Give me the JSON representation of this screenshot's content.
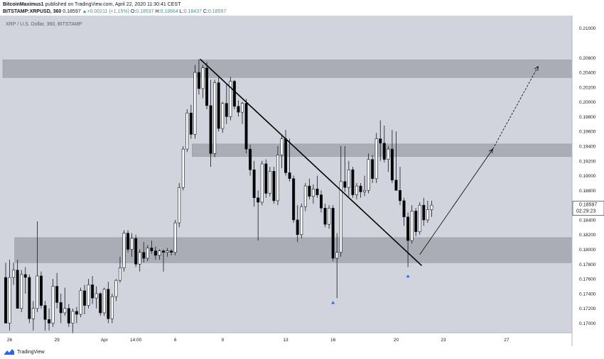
{
  "header": {
    "author": "BitcoinMaximus1",
    "published_text": "published on TradingView.com, April 22, 2020 11:30:41 CEST",
    "symbol": "BITSTAMP:XRPUSD, 360",
    "last": "0.18597",
    "change": "+0.00211 (+1.15%)",
    "open_label": "O:",
    "open": "0.18537",
    "high_label": "H:",
    "high": "0.18664",
    "low_label": "L:",
    "low": "0.18437",
    "close_label": "C:",
    "close": "0.18597"
  },
  "chart_data": {
    "type": "candlestick",
    "legend": "XRP / U.S. Dollar, 360, BITSTAMP",
    "ylim": [
      0.1687,
      0.2117
    ],
    "y_ticks": [
      "0.21000",
      "0.20600",
      "0.20400",
      "0.20200",
      "0.20000",
      "0.19800",
      "0.19600",
      "0.19400",
      "0.19200",
      "0.19000",
      "0.18800",
      "0.18600",
      "0.18400",
      "0.18200",
      "0.18000",
      "0.17800",
      "0.17600",
      "0.17400",
      "0.17200",
      "0.17000"
    ],
    "x_ticks": [
      {
        "label": "26",
        "bar": 1
      },
      {
        "label": "29",
        "bar": 13
      },
      {
        "label": "Apr",
        "bar": 25
      },
      {
        "label": "14:00",
        "bar": 33
      },
      {
        "label": "6",
        "bar": 43
      },
      {
        "label": "9",
        "bar": 55
      },
      {
        "label": "13",
        "bar": 71
      },
      {
        "label": "16",
        "bar": 83
      },
      {
        "label": "20",
        "bar": 99
      },
      {
        "label": "23",
        "bar": 111
      },
      {
        "label": "27",
        "bar": 127
      }
    ],
    "bar_count": 145,
    "last_price_label": "0.18597",
    "countdown_label": "02:29:23",
    "colors": {
      "bull": "#ffffff",
      "bear": "#000000",
      "wick": "#131722",
      "background": "#d1d4dc",
      "zone": "#a3a6ae",
      "arrow_marker": "#2962ff"
    },
    "zones": [
      {
        "low": 0.2033,
        "high": 0.2057,
        "from_bar": 0,
        "to_bar": 145
      },
      {
        "low": 0.1926,
        "high": 0.1943,
        "from_bar": 48,
        "to_bar": 145
      },
      {
        "low": 0.1782,
        "high": 0.1816,
        "from_bar": 3,
        "to_bar": 145
      }
    ],
    "trendline": {
      "from": [
        49.3,
        0.2058
      ],
      "to": [
        105.5,
        0.1778
      ]
    },
    "projection": {
      "solid": {
        "from": [
          105,
          0.1793
        ],
        "to": [
          123.5,
          0.1936
        ]
      },
      "dashed": {
        "from": [
          123.5,
          0.1936
        ],
        "to": [
          135,
          0.2048
        ]
      }
    },
    "markers": [
      {
        "bar": 83,
        "price": 0.1728
      },
      {
        "bar": 102,
        "price": 0.1764
      }
    ],
    "candles": [
      [
        0.1762,
        0.1782,
        0.17,
        0.17
      ],
      [
        0.17,
        0.1786,
        0.169,
        0.1762
      ],
      [
        0.1762,
        0.1782,
        0.1752,
        0.1772
      ],
      [
        0.1772,
        0.1786,
        0.172,
        0.172
      ],
      [
        0.172,
        0.1772,
        0.1715,
        0.1766
      ],
      [
        0.1766,
        0.1776,
        0.174,
        0.1762
      ],
      [
        0.1762,
        0.1766,
        0.17,
        0.1706
      ],
      [
        0.1706,
        0.173,
        0.169,
        0.172
      ],
      [
        0.172,
        0.1838,
        0.1715,
        0.1764
      ],
      [
        0.1764,
        0.177,
        0.172,
        0.1724
      ],
      [
        0.1724,
        0.173,
        0.169,
        0.1705
      ],
      [
        0.1705,
        0.172,
        0.169,
        0.17
      ],
      [
        0.17,
        0.176,
        0.1695,
        0.175
      ],
      [
        0.175,
        0.1768,
        0.172,
        0.1728
      ],
      [
        0.1728,
        0.174,
        0.17,
        0.1714
      ],
      [
        0.1714,
        0.1748,
        0.171,
        0.172
      ],
      [
        0.172,
        0.1726,
        0.1695,
        0.17
      ],
      [
        0.17,
        0.172,
        0.1686,
        0.1716
      ],
      [
        0.1716,
        0.1722,
        0.17,
        0.1712
      ],
      [
        0.1712,
        0.1748,
        0.1708,
        0.1744
      ],
      [
        0.1744,
        0.1752,
        0.1712,
        0.1724
      ],
      [
        0.1724,
        0.176,
        0.172,
        0.1752
      ],
      [
        0.1752,
        0.1764,
        0.1726,
        0.1734
      ],
      [
        0.1734,
        0.175,
        0.172,
        0.174
      ],
      [
        0.174,
        0.1742,
        0.171,
        0.1714
      ],
      [
        0.1714,
        0.1748,
        0.171,
        0.1746
      ],
      [
        0.1746,
        0.1756,
        0.17,
        0.1706
      ],
      [
        0.1706,
        0.174,
        0.17,
        0.1736
      ],
      [
        0.1736,
        0.176,
        0.173,
        0.1758
      ],
      [
        0.1758,
        0.179,
        0.1755,
        0.1775
      ],
      [
        0.1775,
        0.1826,
        0.177,
        0.1822
      ],
      [
        0.1822,
        0.1826,
        0.1796,
        0.18
      ],
      [
        0.18,
        0.1822,
        0.179,
        0.1815
      ],
      [
        0.1815,
        0.182,
        0.1776,
        0.178
      ],
      [
        0.178,
        0.18,
        0.177,
        0.1796
      ],
      [
        0.1796,
        0.181,
        0.1782,
        0.1788
      ],
      [
        0.1788,
        0.1806,
        0.1784,
        0.1802
      ],
      [
        0.1802,
        0.1812,
        0.1794,
        0.1798
      ],
      [
        0.1798,
        0.1804,
        0.1786,
        0.1792
      ],
      [
        0.1792,
        0.18,
        0.1786,
        0.1798
      ],
      [
        0.1798,
        0.18,
        0.177,
        0.1796
      ],
      [
        0.1796,
        0.1802,
        0.179,
        0.1798
      ],
      [
        0.1798,
        0.18,
        0.1792,
        0.1796
      ],
      [
        0.1796,
        0.184,
        0.1792,
        0.1836
      ],
      [
        0.1836,
        0.189,
        0.183,
        0.1884
      ],
      [
        0.1884,
        0.194,
        0.188,
        0.1936
      ],
      [
        0.1936,
        0.199,
        0.1932,
        0.1985
      ],
      [
        0.1985,
        0.1996,
        0.195,
        0.1956
      ],
      [
        0.1956,
        0.205,
        0.195,
        0.204
      ],
      [
        0.204,
        0.2058,
        0.201,
        0.2018
      ],
      [
        0.2018,
        0.205,
        0.2005,
        0.2046
      ],
      [
        0.2046,
        0.2054,
        0.199,
        0.1995
      ],
      [
        0.1995,
        0.203,
        0.1912,
        0.193
      ],
      [
        0.193,
        0.203,
        0.1925,
        0.2026
      ],
      [
        0.2026,
        0.2034,
        0.196,
        0.1964
      ],
      [
        0.1964,
        0.2,
        0.1958,
        0.1998
      ],
      [
        0.1998,
        0.2024,
        0.197,
        0.198
      ],
      [
        0.198,
        0.2034,
        0.1975,
        0.2028
      ],
      [
        0.2028,
        0.203,
        0.199,
        0.1994
      ],
      [
        0.1994,
        0.2002,
        0.198,
        0.1986
      ],
      [
        0.1986,
        0.2,
        0.197,
        0.1998
      ],
      [
        0.1998,
        0.2004,
        0.193,
        0.1936
      ],
      [
        0.1936,
        0.1942,
        0.19,
        0.1908
      ],
      [
        0.1908,
        0.192,
        0.1858,
        0.187
      ],
      [
        0.187,
        0.188,
        0.1812,
        0.1864
      ],
      [
        0.1864,
        0.192,
        0.186,
        0.1916
      ],
      [
        0.1916,
        0.1922,
        0.187,
        0.1876
      ],
      [
        0.1876,
        0.1912,
        0.1872,
        0.1906
      ],
      [
        0.1906,
        0.1912,
        0.1862,
        0.1866
      ],
      [
        0.1866,
        0.194,
        0.186,
        0.1928
      ],
      [
        0.1928,
        0.1954,
        0.191,
        0.195
      ],
      [
        0.195,
        0.1962,
        0.19,
        0.1904
      ],
      [
        0.1904,
        0.195,
        0.1892,
        0.1896
      ],
      [
        0.1896,
        0.19,
        0.1836,
        0.184
      ],
      [
        0.184,
        0.186,
        0.181,
        0.182
      ],
      [
        0.182,
        0.1862,
        0.1815,
        0.1858
      ],
      [
        0.1858,
        0.189,
        0.1852,
        0.1886
      ],
      [
        0.1886,
        0.1896,
        0.1868,
        0.1872
      ],
      [
        0.1872,
        0.1888,
        0.1862,
        0.1882
      ],
      [
        0.1882,
        0.19,
        0.187,
        0.1874
      ],
      [
        0.1874,
        0.188,
        0.185,
        0.1856
      ],
      [
        0.1856,
        0.1862,
        0.183,
        0.1834
      ],
      [
        0.1834,
        0.186,
        0.1828,
        0.1856
      ],
      [
        0.1856,
        0.186,
        0.1784,
        0.1788
      ],
      [
        0.1788,
        0.1822,
        0.1734,
        0.1796
      ],
      [
        0.1796,
        0.194,
        0.179,
        0.1892
      ],
      [
        0.1892,
        0.194,
        0.1878,
        0.1884
      ],
      [
        0.1884,
        0.192,
        0.1872,
        0.1908
      ],
      [
        0.1908,
        0.1912,
        0.187,
        0.1874
      ],
      [
        0.1874,
        0.189,
        0.1868,
        0.1886
      ],
      [
        0.1886,
        0.189,
        0.187,
        0.1878
      ],
      [
        0.1878,
        0.19,
        0.1872,
        0.188
      ],
      [
        0.188,
        0.193,
        0.1876,
        0.1922
      ],
      [
        0.1922,
        0.1928,
        0.189,
        0.1896
      ],
      [
        0.1896,
        0.1958,
        0.189,
        0.195
      ],
      [
        0.195,
        0.1975,
        0.192,
        0.1944
      ],
      [
        0.1944,
        0.1968,
        0.1918,
        0.1922
      ],
      [
        0.1922,
        0.194,
        0.1905,
        0.1936
      ],
      [
        0.1936,
        0.1962,
        0.189,
        0.1894
      ],
      [
        0.1894,
        0.196,
        0.188,
        0.188
      ],
      [
        0.188,
        0.1912,
        0.186,
        0.1866
      ],
      [
        0.1866,
        0.187,
        0.1832,
        0.1844
      ],
      [
        0.1844,
        0.185,
        0.1776,
        0.1812
      ],
      [
        0.1812,
        0.186,
        0.1808,
        0.1852
      ],
      [
        0.1852,
        0.1856,
        0.1818,
        0.1824
      ],
      [
        0.1824,
        0.1864,
        0.182,
        0.186
      ],
      [
        0.186,
        0.187,
        0.1832,
        0.184
      ],
      [
        0.184,
        0.1866,
        0.1836,
        0.1854
      ],
      [
        0.1854,
        0.1866,
        0.1844,
        0.186
      ]
    ]
  },
  "footer": {
    "brand": "TradingView"
  }
}
